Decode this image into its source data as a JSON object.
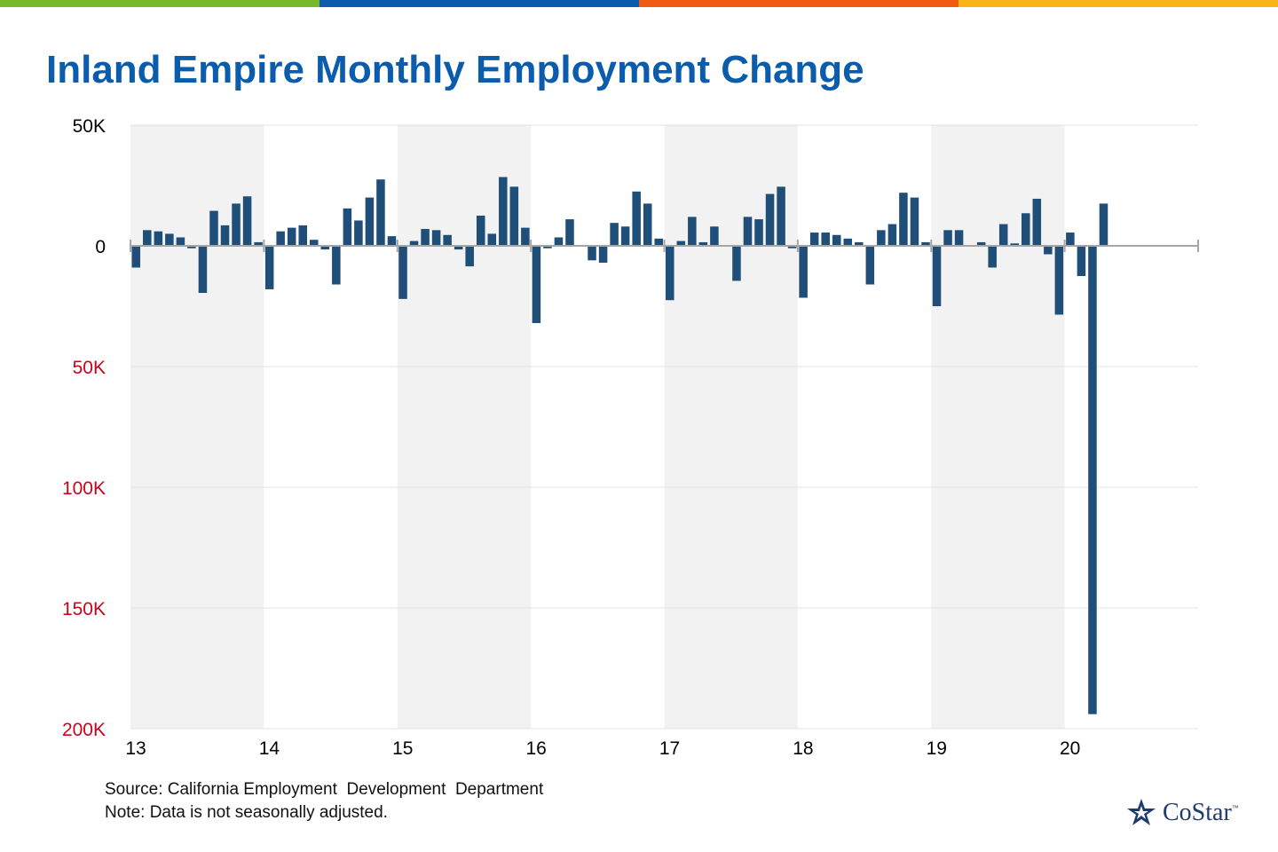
{
  "header": {
    "title": "Inland Empire Monthly Employment Change",
    "stripe_colors": [
      "#76b82a",
      "#0b5cad",
      "#f05a14",
      "#fbb416"
    ]
  },
  "footer": {
    "source": "Source: California Employment  Development  Department",
    "note": "Note: Data is not seasonally adjusted."
  },
  "logo": {
    "text": "CoStar",
    "trademark": "™",
    "icon": "costar-star-logo-icon"
  },
  "colors": {
    "bar": "#1f4e79",
    "negative_tick": "#d0021b",
    "band": "#f2f2f2",
    "axis": "#a6a6a6"
  },
  "chart_data": {
    "type": "bar",
    "title": "Inland Empire Monthly Employment Change",
    "xlabel": "",
    "ylabel": "",
    "ylim": [
      -200000,
      50000
    ],
    "y_ticks": [
      {
        "value": 50000,
        "label": "50K",
        "color": "#000000"
      },
      {
        "value": 0,
        "label": "0",
        "color": "#000000"
      },
      {
        "value": -50000,
        "label": "50K",
        "color": "#d0021b"
      },
      {
        "value": -100000,
        "label": "100K",
        "color": "#d0021b"
      },
      {
        "value": -150000,
        "label": "150K",
        "color": "#d0021b"
      },
      {
        "value": -200000,
        "label": "200K",
        "color": "#d0021b"
      }
    ],
    "x_tick_labels": [
      "13",
      "14",
      "15",
      "16",
      "17",
      "18",
      "19",
      "20"
    ],
    "months_per_year": 12,
    "total_months": 96,
    "grid": true,
    "alternating_year_bands": true,
    "series": [
      {
        "values": [
          -9000,
          6500,
          6000,
          5000,
          3500,
          -1000,
          -19500,
          14500,
          8500,
          17500,
          20500,
          1500,
          -18000,
          6000,
          7500,
          8500,
          2500,
          -1500,
          -16000,
          15500,
          10500,
          20000,
          27500,
          4000,
          -22000,
          2000,
          7000,
          6500,
          4500,
          -1500,
          -8500,
          12500,
          5000,
          28500,
          24500,
          7500,
          -32000,
          -1000,
          3500,
          11000,
          0,
          -6000,
          -7000,
          9500,
          8000,
          22500,
          17500,
          3000,
          -22500,
          2000,
          12000,
          1500,
          8000,
          0,
          -14500,
          12000,
          11000,
          21500,
          24500,
          -1000,
          -21500,
          5500,
          5500,
          4500,
          3000,
          1500,
          -16000,
          6500,
          9000,
          22000,
          20000,
          1500,
          -25000,
          6500,
          6500,
          0,
          1500,
          -9000,
          9000,
          1000,
          13500,
          19500,
          -3500,
          -28500,
          5500,
          -12500,
          -194000,
          17500
        ]
      }
    ]
  }
}
